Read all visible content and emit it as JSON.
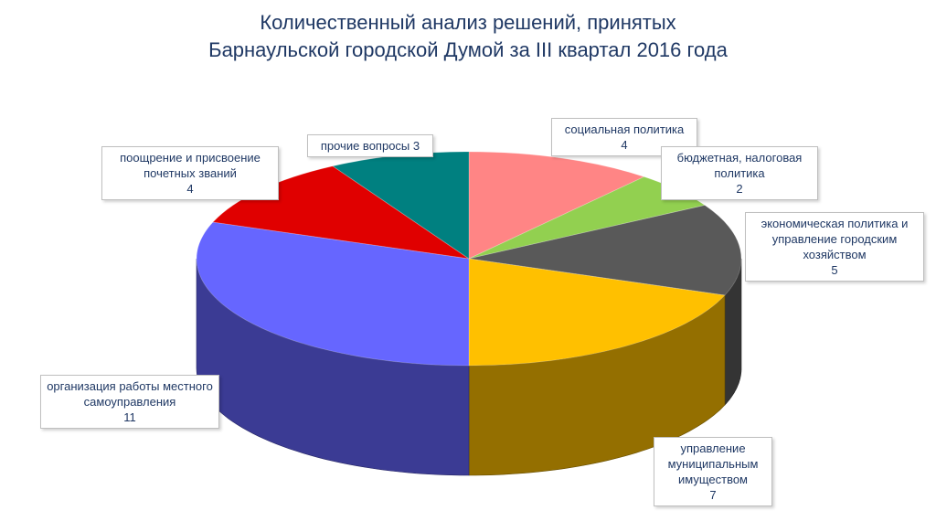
{
  "title_line1": "Количественный анализ решений, принятых",
  "title_line2": "Барнаульской городской Думой за III квартал 2016 года",
  "chart_data": {
    "type": "pie",
    "title": "Количественный анализ решений, принятых Барнаульской городской Думой за III квартал 2016 года",
    "slices": [
      {
        "label": "социальная политика",
        "value": 4,
        "color": "#ff8585"
      },
      {
        "label": "бюджетная, налоговая политика",
        "value": 2,
        "color": "#92d050"
      },
      {
        "label": "экономическая политика и управление городским хозяйством",
        "value": 5,
        "color": "#595959"
      },
      {
        "label": "управление муниципальным имуществом",
        "value": 7,
        "color": "#ffc000"
      },
      {
        "label": "организация работы местного самоуправления",
        "value": 11,
        "color": "#6666ff"
      },
      {
        "label": "поощрение и присвоение почетных званий",
        "value": 4,
        "color": "#e00000"
      },
      {
        "label": "прочие вопросы",
        "value": 3,
        "color": "#008080"
      }
    ]
  },
  "labels": [
    {
      "text": "социальная политика",
      "value": "4"
    },
    {
      "text": "бюджетная, налоговая политика",
      "value": "2"
    },
    {
      "text": "экономическая политика и управление городским хозяйством",
      "value": "5"
    },
    {
      "text": "управление муниципальным имуществом",
      "value": "7"
    },
    {
      "text": "организация работы местного самоуправления",
      "value": "11"
    },
    {
      "text": "поощрение и присвоение почетных званий",
      "value": "4"
    },
    {
      "text": "прочие вопросы",
      "value": "3"
    }
  ]
}
